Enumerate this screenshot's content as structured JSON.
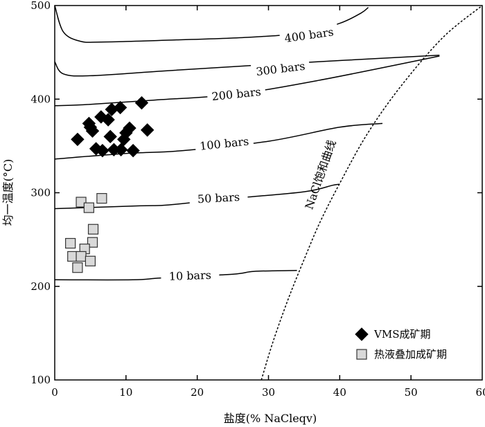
{
  "chart_data": {
    "type": "scatter",
    "xlabel": "盐度(% NaCleqv)",
    "ylabel": "均一温度(°C)",
    "xlim": [
      0,
      60
    ],
    "ylim": [
      100,
      500
    ],
    "xticks": [
      "0",
      "10",
      "20",
      "30",
      "40",
      "50",
      "60"
    ],
    "yticks": [
      "100",
      "200",
      "300",
      "400",
      "500"
    ],
    "grid": false,
    "legend_position": "bottom-right",
    "series": [
      {
        "name": "VMS成矿期",
        "marker": "diamond",
        "color": "#000000",
        "points": [
          [
            3.2,
            357
          ],
          [
            4.8,
            374
          ],
          [
            5.0,
            370
          ],
          [
            5.3,
            366
          ],
          [
            6.5,
            381
          ],
          [
            7.5,
            378
          ],
          [
            8.0,
            389
          ],
          [
            9.2,
            391
          ],
          [
            12.2,
            396
          ],
          [
            13.0,
            367
          ],
          [
            10.5,
            369
          ],
          [
            10.0,
            364
          ],
          [
            7.8,
            360
          ],
          [
            9.7,
            357
          ],
          [
            5.8,
            347
          ],
          [
            6.7,
            345
          ],
          [
            8.3,
            346
          ],
          [
            9.3,
            346
          ],
          [
            11.0,
            345
          ]
        ]
      },
      {
        "name": "热液叠加成矿期",
        "marker": "square",
        "color": "#d9d9d9",
        "points": [
          [
            3.7,
            290
          ],
          [
            4.8,
            284
          ],
          [
            6.6,
            294
          ],
          [
            5.4,
            261
          ],
          [
            5.3,
            247
          ],
          [
            2.2,
            246
          ],
          [
            4.2,
            240
          ],
          [
            2.5,
            232
          ],
          [
            3.7,
            232
          ],
          [
            5.0,
            227
          ],
          [
            3.2,
            220
          ]
        ]
      }
    ],
    "isochores": [
      {
        "label": "400 bars",
        "points": [
          [
            0,
            500
          ],
          [
            1.2,
            472
          ],
          [
            3.5,
            462
          ],
          [
            6.5,
            461
          ],
          [
            16,
            463
          ],
          [
            27,
            466
          ],
          [
            35,
            471
          ],
          [
            40,
            481
          ],
          [
            43,
            492
          ],
          [
            44,
            498
          ]
        ]
      },
      {
        "label": "300 bars",
        "points": [
          [
            0,
            440
          ],
          [
            1.2,
            427
          ],
          [
            5,
            425
          ],
          [
            15,
            430
          ],
          [
            30,
            437
          ],
          [
            54,
            447
          ]
        ]
      },
      {
        "label": "200 bars",
        "points": [
          [
            0,
            393
          ],
          [
            4,
            394
          ],
          [
            14,
            399
          ],
          [
            25,
            405
          ],
          [
            37,
            420
          ],
          [
            54,
            446
          ]
        ]
      },
      {
        "label": "100 bars",
        "points": [
          [
            0,
            336
          ],
          [
            10,
            342
          ],
          [
            18,
            345
          ],
          [
            30,
            355
          ],
          [
            40,
            370
          ],
          [
            46,
            374
          ]
        ]
      },
      {
        "label": "50 bars",
        "points": [
          [
            0,
            283
          ],
          [
            12,
            286
          ],
          [
            16,
            287
          ],
          [
            25,
            294
          ],
          [
            35,
            301
          ],
          [
            39,
            308
          ],
          [
            40,
            309
          ]
        ]
      },
      {
        "label": "10 bars",
        "points": [
          [
            0,
            207
          ],
          [
            11,
            207
          ],
          [
            15,
            209
          ],
          [
            25,
            213
          ],
          [
            28,
            216
          ],
          [
            34,
            217
          ]
        ]
      }
    ],
    "saturation_curve": {
      "label": "NaCl饱和曲线",
      "style": "dashed",
      "points": [
        [
          29,
          100
        ],
        [
          30.6,
          140
        ],
        [
          32.7,
          185
        ],
        [
          34.8,
          225
        ],
        [
          37.2,
          268
        ],
        [
          40,
          310
        ],
        [
          43.8,
          362
        ],
        [
          48.5,
          413
        ],
        [
          54.5,
          466
        ],
        [
          60,
          500
        ]
      ]
    }
  }
}
